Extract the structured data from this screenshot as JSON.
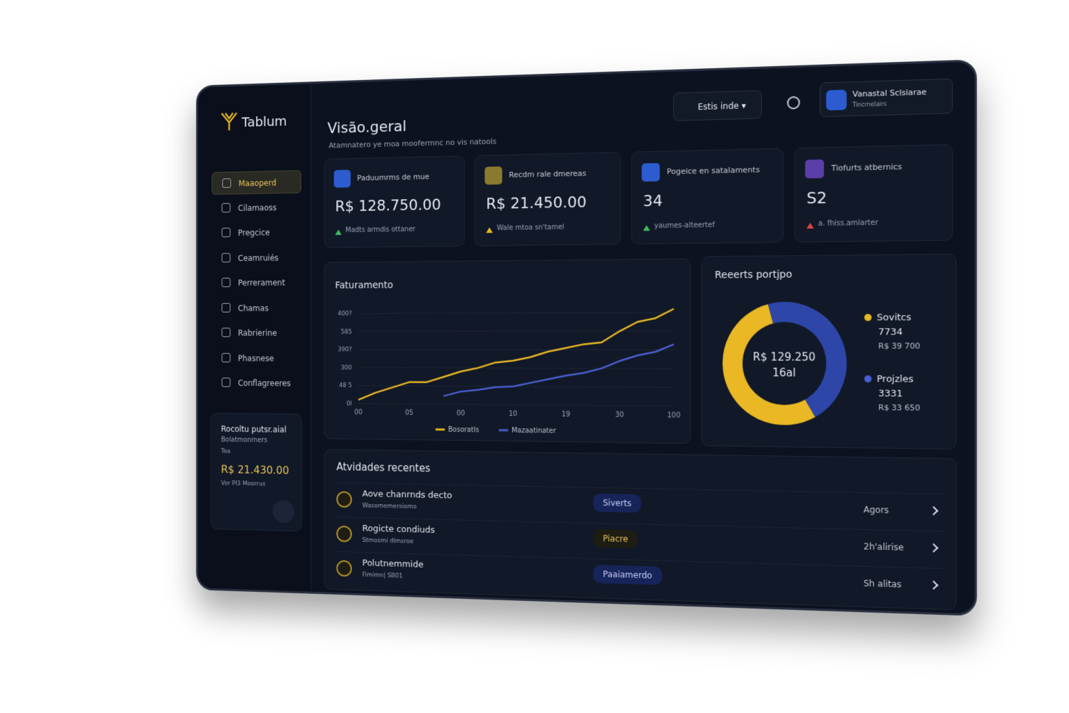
{
  "sidebar": {
    "brand": "Tablum",
    "nav": [
      "Maaoperd",
      "Cilamaoss",
      "Pregcice",
      "Ceamruiés",
      "Perrerament",
      "Chamas",
      "Rabrierine",
      "Phasnese",
      "Conflagreeres"
    ],
    "card": {
      "title": "Rocoltu putsr.aial",
      "subtitle": "Bolatmonrners",
      "note": "Tea",
      "amount": "R$ 21.430.00",
      "footnote": "Vor PI3 Moorrus"
    }
  },
  "header": {
    "title": "Visão.geral",
    "subtitle": "Atamnatero ye moa moofermnc no vis natools",
    "filter": "Estis inde",
    "user": "Vanastal Sclsiarae",
    "user_sub": "Tincrnelairs"
  },
  "kpis": [
    {
      "label": "Paduumrms de mue",
      "value": "R$ 128.750.00",
      "note": "Madts armdis ottaner"
    },
    {
      "label": "Recdm rale dmereas",
      "value": "R$ 21.450.00",
      "note": "Wale   mtoa sn'tamel"
    },
    {
      "label": "Pogeice en satalaments",
      "value": "34",
      "note": "yaumes-alteertef"
    },
    {
      "label": "Tiofurts atbernics",
      "value": "S2",
      "note": "a. fhiss.amlarter"
    }
  ],
  "revenue_chart": {
    "type": "line",
    "title": "Faturamento",
    "categories": [
      "00",
      null,
      null,
      "05",
      null,
      null,
      "00",
      null,
      null,
      "10",
      null,
      null,
      "19",
      null,
      null,
      "30",
      null,
      null,
      "100"
    ],
    "series": [
      {
        "name": "Bosoratls",
        "color": "#e9b824",
        "values": [
          0.2,
          0.6,
          0.9,
          1.2,
          1.2,
          1.5,
          1.8,
          2.0,
          2.3,
          2.4,
          2.6,
          2.9,
          3.1,
          3.3,
          3.4,
          4.0,
          4.5,
          4.7,
          5.2
        ]
      },
      {
        "name": "Mazaatinater",
        "color": "#4a5fd0",
        "values": [
          null,
          null,
          null,
          null,
          null,
          0.45,
          0.7,
          0.8,
          0.95,
          1.0,
          1.2,
          1.4,
          1.6,
          1.75,
          2.0,
          2.4,
          2.7,
          2.9,
          3.3
        ]
      }
    ],
    "ylim": [
      0,
      5.5
    ],
    "yticks": [
      {
        "value": 0,
        "label": "0l"
      },
      {
        "value": 1,
        "label": "48 5"
      },
      {
        "value": 2,
        "label": "300"
      },
      {
        "value": 3,
        "label": "390?"
      },
      {
        "value": 4,
        "label": "585"
      },
      {
        "value": 5,
        "label": "400?"
      }
    ],
    "grid": true
  },
  "donut_chart": {
    "type": "donut",
    "title": "Reeerts portjpo",
    "center": [
      "R$ 129.250",
      "16al"
    ],
    "series": [
      {
        "name": "Sovitcs",
        "count": "7734",
        "color": "#e9b824"
      },
      {
        "name": "Projzles",
        "count": "3331",
        "color": "#2d46a8"
      }
    ],
    "values": [
      39700,
      33650
    ],
    "value_labels": [
      "R$ 39 700",
      "R$ 33 650"
    ]
  },
  "activities": {
    "title": "Atvidades recentes",
    "items": [
      {
        "title": "Aove chanrnds decto",
        "subtitle": "Wasomemersiomo",
        "tag": "Siverts",
        "time": "Agors"
      },
      {
        "title": "Rogicte condiuds",
        "subtitle": "Stmosmi dlmsroe",
        "tag": "Piacre",
        "time": "2h'alirise"
      },
      {
        "title": "Polutnemmide",
        "subtitle": "Fimimn| SB01",
        "tag": "Paaiamerdo",
        "time": "Sh alitas"
      }
    ]
  }
}
